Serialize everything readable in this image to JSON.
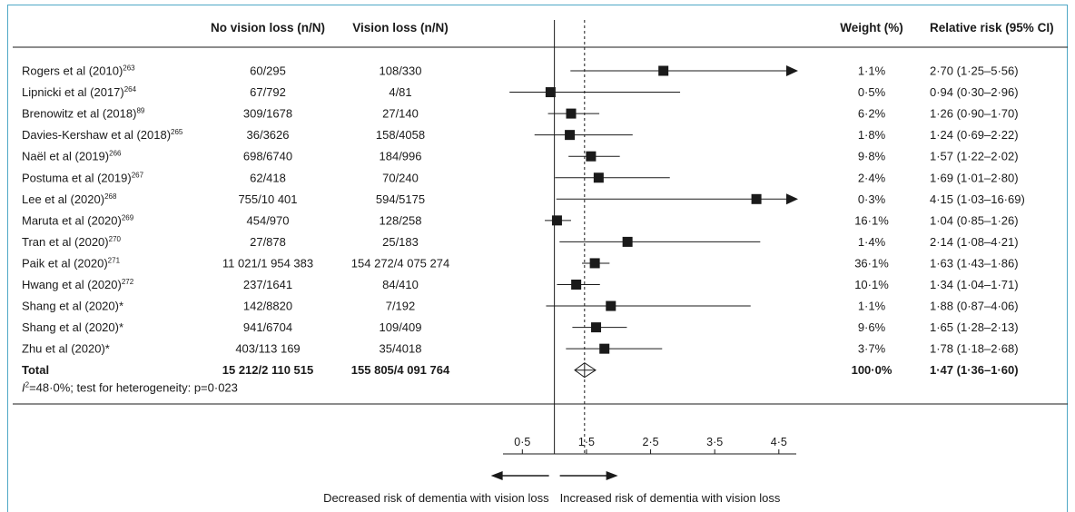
{
  "chart_data": {
    "type": "forest",
    "headers": {
      "study": "",
      "no_vision_loss": "No vision loss (n/N)",
      "vision_loss": "Vision loss (n/N)",
      "weight": "Weight (%)",
      "rr": "Relative risk (95% CI)"
    },
    "studies": [
      {
        "name": "Rogers et al (2010)",
        "ref": "263",
        "no_vision_loss": "60/295",
        "vision_loss": "108/330",
        "weight": "1·1%",
        "rr_text": "2·70 (1·25–5·56)",
        "rr": 2.7,
        "lo": 1.25,
        "hi": 5.56,
        "arrow": true
      },
      {
        "name": "Lipnicki et al (2017)",
        "ref": "264",
        "no_vision_loss": "67/792",
        "vision_loss": "4/81",
        "weight": "0·5%",
        "rr_text": "0·94 (0·30–2·96)",
        "rr": 0.94,
        "lo": 0.3,
        "hi": 2.96,
        "arrow": false
      },
      {
        "name": "Brenowitz et al (2018)",
        "ref": "89",
        "no_vision_loss": "309/1678",
        "vision_loss": "27/140",
        "weight": "6·2%",
        "rr_text": "1·26 (0·90–1·70)",
        "rr": 1.26,
        "lo": 0.9,
        "hi": 1.7,
        "arrow": false
      },
      {
        "name": "Davies-Kershaw et al (2018)",
        "ref": "265",
        "no_vision_loss": "36/3626",
        "vision_loss": "158/4058",
        "weight": "1·8%",
        "rr_text": "1·24 (0·69–2·22)",
        "rr": 1.24,
        "lo": 0.69,
        "hi": 2.22,
        "arrow": false
      },
      {
        "name": "Naël et al (2019)",
        "ref": "266",
        "no_vision_loss": "698/6740",
        "vision_loss": "184/996",
        "weight": "9·8%",
        "rr_text": "1·57 (1·22–2·02)",
        "rr": 1.57,
        "lo": 1.22,
        "hi": 2.02,
        "arrow": false
      },
      {
        "name": "Postuma et al (2019)",
        "ref": "267",
        "no_vision_loss": "62/418",
        "vision_loss": "70/240",
        "weight": "2·4%",
        "rr_text": "1·69 (1·01–2·80)",
        "rr": 1.69,
        "lo": 1.01,
        "hi": 2.8,
        "arrow": false
      },
      {
        "name": "Lee et al (2020)",
        "ref": "268",
        "no_vision_loss": "755/10 401",
        "vision_loss": "594/5175",
        "weight": "0·3%",
        "rr_text": "4·15 (1·03–16·69)",
        "rr": 4.15,
        "lo": 1.03,
        "hi": 16.69,
        "arrow": true
      },
      {
        "name": "Maruta et al (2020)",
        "ref": "269",
        "no_vision_loss": "454/970",
        "vision_loss": "128/258",
        "weight": "16·1%",
        "rr_text": "1·04 (0·85–1·26)",
        "rr": 1.04,
        "lo": 0.85,
        "hi": 1.26,
        "arrow": false
      },
      {
        "name": "Tran et al (2020)",
        "ref": "270",
        "no_vision_loss": "27/878",
        "vision_loss": "25/183",
        "weight": "1·4%",
        "rr_text": "2·14 (1·08–4·21)",
        "rr": 2.14,
        "lo": 1.08,
        "hi": 4.21,
        "arrow": false
      },
      {
        "name": "Paik et al (2020)",
        "ref": "271",
        "no_vision_loss": "11 021/1 954 383",
        "vision_loss": "154 272/4 075 274",
        "weight": "36·1%",
        "rr_text": "1·63 (1·43–1·86)",
        "rr": 1.63,
        "lo": 1.43,
        "hi": 1.86,
        "arrow": false
      },
      {
        "name": "Hwang et al (2020)",
        "ref": "272",
        "no_vision_loss": "237/1641",
        "vision_loss": "84/410",
        "weight": "10·1%",
        "rr_text": "1·34 (1·04–1·71)",
        "rr": 1.34,
        "lo": 1.04,
        "hi": 1.71,
        "arrow": false
      },
      {
        "name": "Shang et al (2020)*",
        "ref": "",
        "no_vision_loss": "142/8820",
        "vision_loss": "7/192",
        "weight": "1·1%",
        "rr_text": "1·88 (0·87–4·06)",
        "rr": 1.88,
        "lo": 0.87,
        "hi": 4.06,
        "arrow": false
      },
      {
        "name": "Shang et al (2020)*",
        "ref": "",
        "no_vision_loss": "941/6704",
        "vision_loss": "109/409",
        "weight": "9·6%",
        "rr_text": "1·65 (1·28–2·13)",
        "rr": 1.65,
        "lo": 1.28,
        "hi": 2.13,
        "arrow": false
      },
      {
        "name": "Zhu et al (2020)*",
        "ref": "",
        "no_vision_loss": "403/113 169",
        "vision_loss": "35/4018",
        "weight": "3·7%",
        "rr_text": "1·78 (1·18–2·68)",
        "rr": 1.78,
        "lo": 1.18,
        "hi": 2.68,
        "arrow": false
      }
    ],
    "total": {
      "name": "Total",
      "no_vision_loss": "15 212/2 110 515",
      "vision_loss": "155 805/4 091 764",
      "weight": "100·0%",
      "rr_text": "1·47 (1·36–1·60)",
      "rr": 1.47,
      "lo": 1.36,
      "hi": 1.6
    },
    "heterogeneity": {
      "symbol": "I",
      "exponent": "2",
      "text": "=48·0%; test for heterogeneity: p=0·023"
    },
    "x_axis": {
      "ticks": [
        0.5,
        1.5,
        2.5,
        3.5,
        4.5
      ],
      "tick_labels": [
        "0·5",
        "1·5",
        "2·5",
        "3·5",
        "4·5"
      ],
      "xlim": [
        0.0,
        4.8
      ],
      "null_line": 1.0,
      "pooled_line": 1.47
    },
    "direction_labels": {
      "left": "Decreased risk of dementia with vision loss",
      "right": "Increased risk of dementia with vision loss"
    }
  }
}
